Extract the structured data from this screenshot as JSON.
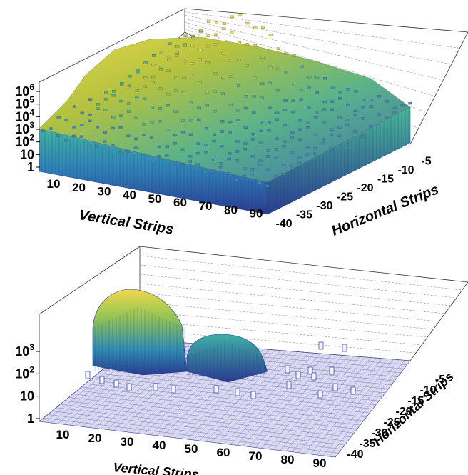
{
  "chart_data": [
    {
      "type": "lego3d",
      "x_label": "Vertical Strips",
      "y_label": "Horizontal Strips",
      "x_ticks": [
        "10",
        "20",
        "30",
        "40",
        "50",
        "60",
        "70",
        "80",
        "90"
      ],
      "y_ticks": [
        "-40",
        "-35",
        "-30",
        "-25",
        "-20",
        "-15",
        "-10",
        "-5"
      ],
      "z_ticks": [
        {
          "base": "1",
          "exp": ""
        },
        {
          "base": "10",
          "exp": ""
        },
        {
          "base": "10",
          "exp": "2"
        },
        {
          "base": "10",
          "exp": "3"
        },
        {
          "base": "10",
          "exp": "4"
        },
        {
          "base": "10",
          "exp": "5"
        },
        {
          "base": "10",
          "exp": "6"
        }
      ],
      "z_scale": "log",
      "x_range": [
        1,
        96
      ],
      "y_range": [
        -42,
        -2
      ],
      "z_range": [
        1,
        1000000
      ],
      "palette": "viridis",
      "description_values": {
        "peak_region_x": [
          10,
          45
        ],
        "peak_log10": 6,
        "plateau_log10": 3
      }
    },
    {
      "type": "lego3d",
      "x_label": "Vertical Strips",
      "y_label": "Horizontal Strips",
      "x_ticks": [
        "10",
        "20",
        "30",
        "40",
        "50",
        "60",
        "70",
        "80",
        "90"
      ],
      "y_ticks": [
        "-40",
        "-35",
        "-30",
        "-25",
        "-20",
        "-15",
        "-10",
        "-5"
      ],
      "z_ticks": [
        {
          "base": "1",
          "exp": ""
        },
        {
          "base": "10",
          "exp": ""
        },
        {
          "base": "10",
          "exp": "2"
        },
        {
          "base": "10",
          "exp": "3"
        }
      ],
      "z_scale": "log",
      "x_range": [
        1,
        96
      ],
      "y_range": [
        -42,
        -2
      ],
      "z_range": [
        1,
        3000
      ],
      "palette": "viridis",
      "blobs": [
        {
          "x_center": 22,
          "y_center": -25,
          "peak": 3000
        },
        {
          "x_center": 48,
          "y_center": -24,
          "peak": 300
        }
      ]
    }
  ]
}
